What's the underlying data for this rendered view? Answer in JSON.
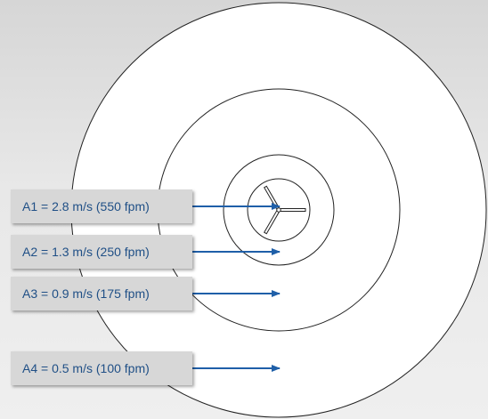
{
  "zones": [
    {
      "id": "A1",
      "label": "A1 = 2.8 m/s (550 fpm)"
    },
    {
      "id": "A2",
      "label": "A2 = 1.3 m/s (250 fpm)"
    },
    {
      "id": "A3",
      "label": "A3 = 0.9 m/s (175 fpm)"
    },
    {
      "id": "A4",
      "label": "A4 = 0.5 m/s (100 fpm)"
    }
  ],
  "colors": {
    "label_text": "#1f4f86",
    "arrow": "#1f5fa8",
    "circle_stroke": "#222222",
    "label_box": "#d7d7d7"
  },
  "icons": {
    "center": "diffuser-vane-icon"
  }
}
